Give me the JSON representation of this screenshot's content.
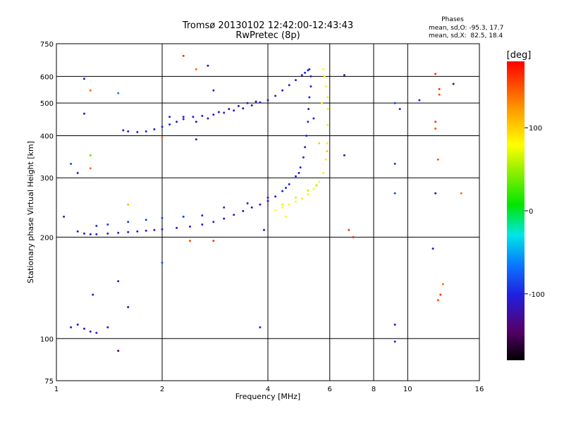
{
  "chart_data": {
    "type": "scatter",
    "title": "Tromsø 20130102 12:42:00-12:43:43",
    "subtitle": "RwPretec (8p)",
    "xlabel": "Frequency [MHz]",
    "ylabel": "Stationary phase Virtual Height [km]",
    "x_scale": "log",
    "y_scale": "log",
    "xlim": [
      1,
      16
    ],
    "ylim": [
      75,
      750
    ],
    "x_ticks": [
      "1",
      "2",
      "4",
      "6",
      "8",
      "10",
      "16"
    ],
    "x_tick_values": [
      1,
      2,
      4,
      6,
      8,
      10,
      16
    ],
    "y_ticks": [
      "75",
      "100",
      "200",
      "300",
      "400",
      "500",
      "600",
      "750"
    ],
    "y_tick_values": [
      75,
      100,
      200,
      300,
      400,
      500,
      600,
      750
    ],
    "grid": true,
    "stats": {
      "title": "Phases",
      "line_o": "mean, sd,O: -95.3, 17.7",
      "line_x": "mean, sd,X:  82.5, 18.4"
    },
    "colorbar": {
      "label": "[deg]",
      "range": [
        -180,
        180
      ],
      "ticks": [
        "100",
        "0",
        "-100"
      ],
      "tick_values": [
        100,
        0,
        -100
      ]
    },
    "series": [
      {
        "mode": "O",
        "note": "upper trace (F2, O-mode)",
        "points": [
          [
            1.55,
            415,
            -100
          ],
          [
            1.6,
            412,
            -100
          ],
          [
            1.7,
            410,
            -100
          ],
          [
            1.8,
            412,
            -100
          ],
          [
            1.9,
            418,
            -100
          ],
          [
            2.0,
            425,
            -100
          ],
          [
            2.1,
            432,
            -100
          ],
          [
            2.2,
            440,
            -100
          ],
          [
            2.3,
            448,
            -100
          ],
          [
            2.45,
            455,
            -100
          ],
          [
            2.6,
            458,
            -100
          ],
          [
            2.8,
            462,
            -105
          ],
          [
            3.0,
            468,
            -110
          ],
          [
            3.2,
            475,
            -115
          ],
          [
            3.4,
            482,
            -120
          ],
          [
            3.6,
            492,
            -120
          ],
          [
            3.8,
            502,
            -115
          ],
          [
            4.0,
            510,
            -110
          ],
          [
            4.2,
            525,
            -110
          ],
          [
            4.4,
            545,
            -105
          ],
          [
            4.6,
            565,
            -105
          ],
          [
            4.8,
            585,
            -100
          ],
          [
            5.0,
            605,
            -100
          ],
          [
            5.1,
            615,
            -100
          ],
          [
            5.2,
            625,
            -100
          ],
          [
            5.25,
            630,
            -100
          ],
          [
            2.1,
            455,
            -100
          ],
          [
            2.3,
            455,
            -100
          ],
          [
            2.5,
            440,
            -110
          ],
          [
            2.7,
            450,
            -110
          ],
          [
            2.9,
            470,
            -115
          ],
          [
            3.1,
            480,
            -120
          ],
          [
            3.3,
            490,
            -120
          ],
          [
            3.5,
            500,
            -120
          ],
          [
            3.7,
            505,
            -115
          ]
        ]
      },
      {
        "mode": "O",
        "note": "lower trace (F2, O-mode)",
        "points": [
          [
            1.15,
            208,
            -110
          ],
          [
            1.2,
            205,
            -110
          ],
          [
            1.25,
            204,
            -110
          ],
          [
            1.3,
            204,
            -110
          ],
          [
            1.4,
            205,
            -110
          ],
          [
            1.5,
            206,
            -110
          ],
          [
            1.6,
            207,
            -110
          ],
          [
            1.7,
            208,
            -110
          ],
          [
            1.8,
            209,
            -110
          ],
          [
            1.9,
            210,
            -110
          ],
          [
            2.0,
            211,
            -110
          ],
          [
            2.2,
            213,
            -110
          ],
          [
            2.4,
            215,
            -100
          ],
          [
            2.6,
            218,
            -100
          ],
          [
            2.8,
            222,
            -100
          ],
          [
            3.0,
            227,
            -105
          ],
          [
            3.2,
            233,
            -110
          ],
          [
            3.4,
            239,
            -115
          ],
          [
            3.6,
            245,
            -115
          ],
          [
            3.8,
            250,
            -110
          ],
          [
            4.0,
            256,
            -110
          ],
          [
            4.2,
            264,
            -105
          ],
          [
            4.4,
            274,
            -105
          ],
          [
            4.6,
            287,
            -100
          ],
          [
            4.8,
            303,
            -100
          ],
          [
            4.95,
            322,
            -100
          ],
          [
            5.05,
            345,
            -100
          ],
          [
            5.1,
            370,
            -100
          ],
          [
            5.15,
            400,
            -100
          ],
          [
            5.2,
            440,
            -100
          ],
          [
            5.22,
            480,
            -100
          ],
          [
            5.25,
            520,
            -100
          ],
          [
            5.3,
            560,
            -100
          ],
          [
            5.3,
            600,
            -100
          ],
          [
            1.3,
            216,
            -95
          ],
          [
            1.4,
            218,
            -90
          ],
          [
            1.6,
            222,
            -90
          ],
          [
            1.8,
            225,
            -90
          ],
          [
            2.0,
            228,
            -85
          ],
          [
            2.3,
            230,
            -90
          ],
          [
            2.6,
            232,
            -95
          ],
          [
            3.0,
            245,
            -100
          ],
          [
            3.5,
            252,
            -100
          ],
          [
            4.0,
            262,
            -100
          ],
          [
            4.5,
            280,
            -100
          ],
          [
            4.9,
            310,
            -100
          ]
        ]
      },
      {
        "mode": "X",
        "note": "X-mode trace",
        "points": [
          [
            4.2,
            240,
            80
          ],
          [
            4.4,
            245,
            80
          ],
          [
            4.6,
            250,
            82
          ],
          [
            4.8,
            255,
            82
          ],
          [
            5.0,
            260,
            85
          ],
          [
            5.2,
            268,
            85
          ],
          [
            5.4,
            278,
            80
          ],
          [
            5.6,
            292,
            82
          ],
          [
            5.75,
            310,
            85
          ],
          [
            5.85,
            340,
            85
          ],
          [
            5.9,
            380,
            85
          ],
          [
            5.92,
            430,
            85
          ],
          [
            5.93,
            480,
            85
          ],
          [
            5.92,
            520,
            85
          ],
          [
            5.85,
            560,
            85
          ],
          [
            5.8,
            600,
            85
          ],
          [
            5.75,
            630,
            85
          ],
          [
            4.4,
            250,
            70
          ],
          [
            4.8,
            262,
            65
          ],
          [
            5.2,
            275,
            60
          ],
          [
            5.5,
            285,
            55
          ]
        ]
      },
      {
        "mode": "noise",
        "note": "scattered points",
        "points": [
          [
            1.2,
            590,
            -120
          ],
          [
            1.25,
            545,
            140
          ],
          [
            1.5,
            535,
            -60
          ],
          [
            1.2,
            465,
            -110
          ],
          [
            1.25,
            350,
            30
          ],
          [
            1.1,
            330,
            -80
          ],
          [
            1.15,
            310,
            -110
          ],
          [
            1.25,
            320,
            140
          ],
          [
            1.05,
            230,
            -110
          ],
          [
            1.6,
            250,
            110
          ],
          [
            2.3,
            690,
            160
          ],
          [
            2.5,
            630,
            140
          ],
          [
            2.7,
            645,
            -120
          ],
          [
            2.8,
            545,
            -100
          ],
          [
            2.0,
            395,
            140
          ],
          [
            2.5,
            390,
            -110
          ],
          [
            1.1,
            108,
            -110
          ],
          [
            1.15,
            110,
            -110
          ],
          [
            1.2,
            107,
            -110
          ],
          [
            1.25,
            105,
            -100
          ],
          [
            1.3,
            104,
            -100
          ],
          [
            1.4,
            108,
            -110
          ],
          [
            1.5,
            148,
            -110
          ],
          [
            1.6,
            124,
            -120
          ],
          [
            1.5,
            92,
            -140
          ],
          [
            1.27,
            135,
            -110
          ],
          [
            2.0,
            168,
            -80
          ],
          [
            2.4,
            195,
            150
          ],
          [
            2.8,
            195,
            160
          ],
          [
            3.8,
            108,
            -110
          ],
          [
            6.6,
            605,
            -120
          ],
          [
            6.6,
            350,
            -120
          ],
          [
            6.8,
            210,
            160
          ],
          [
            7.0,
            200,
            170
          ],
          [
            9.2,
            500,
            -90
          ],
          [
            9.2,
            330,
            -90
          ],
          [
            9.2,
            270,
            -80
          ],
          [
            9.2,
            110,
            -110
          ],
          [
            9.2,
            98,
            -100
          ],
          [
            9.5,
            480,
            -100
          ],
          [
            10.8,
            510,
            -100
          ],
          [
            12.0,
            610,
            160
          ],
          [
            12.3,
            550,
            160
          ],
          [
            12.3,
            530,
            150
          ],
          [
            12.0,
            440,
            160
          ],
          [
            12.0,
            420,
            150
          ],
          [
            12.2,
            340,
            150
          ],
          [
            12.0,
            270,
            -120
          ],
          [
            11.8,
            185,
            -110
          ],
          [
            12.2,
            130,
            150
          ],
          [
            12.4,
            135,
            160
          ],
          [
            12.6,
            145,
            140
          ],
          [
            13.5,
            570,
            -130
          ],
          [
            14.2,
            270,
            140
          ],
          [
            3.9,
            210,
            -110
          ],
          [
            5.6,
            380,
            100
          ],
          [
            5.9,
            360,
            100
          ],
          [
            5.4,
            450,
            -100
          ],
          [
            5.7,
            500,
            90
          ],
          [
            4.5,
            230,
            80
          ]
        ]
      }
    ]
  }
}
